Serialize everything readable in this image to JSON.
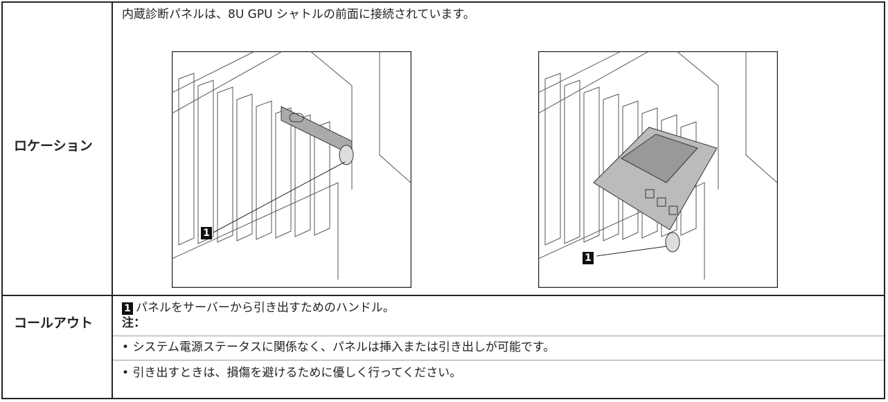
{
  "rows": [
    {
      "header": "ロケーション",
      "description": "内蔵診断パネルは、8U GPU シャトルの前面に接続されています。",
      "callouts": [
        "1",
        "1"
      ]
    },
    {
      "header": "コールアウト",
      "callout_number": "1",
      "callout_text": "パネルをサーバーから引き出すためのハンドル。",
      "note_label": "注：",
      "notes": [
        "システム電源ステータスに関係なく、パネルは挿入または引き出しが可能です。",
        "引き出すときは、損傷を避けるために優しく行ってください。"
      ]
    }
  ]
}
